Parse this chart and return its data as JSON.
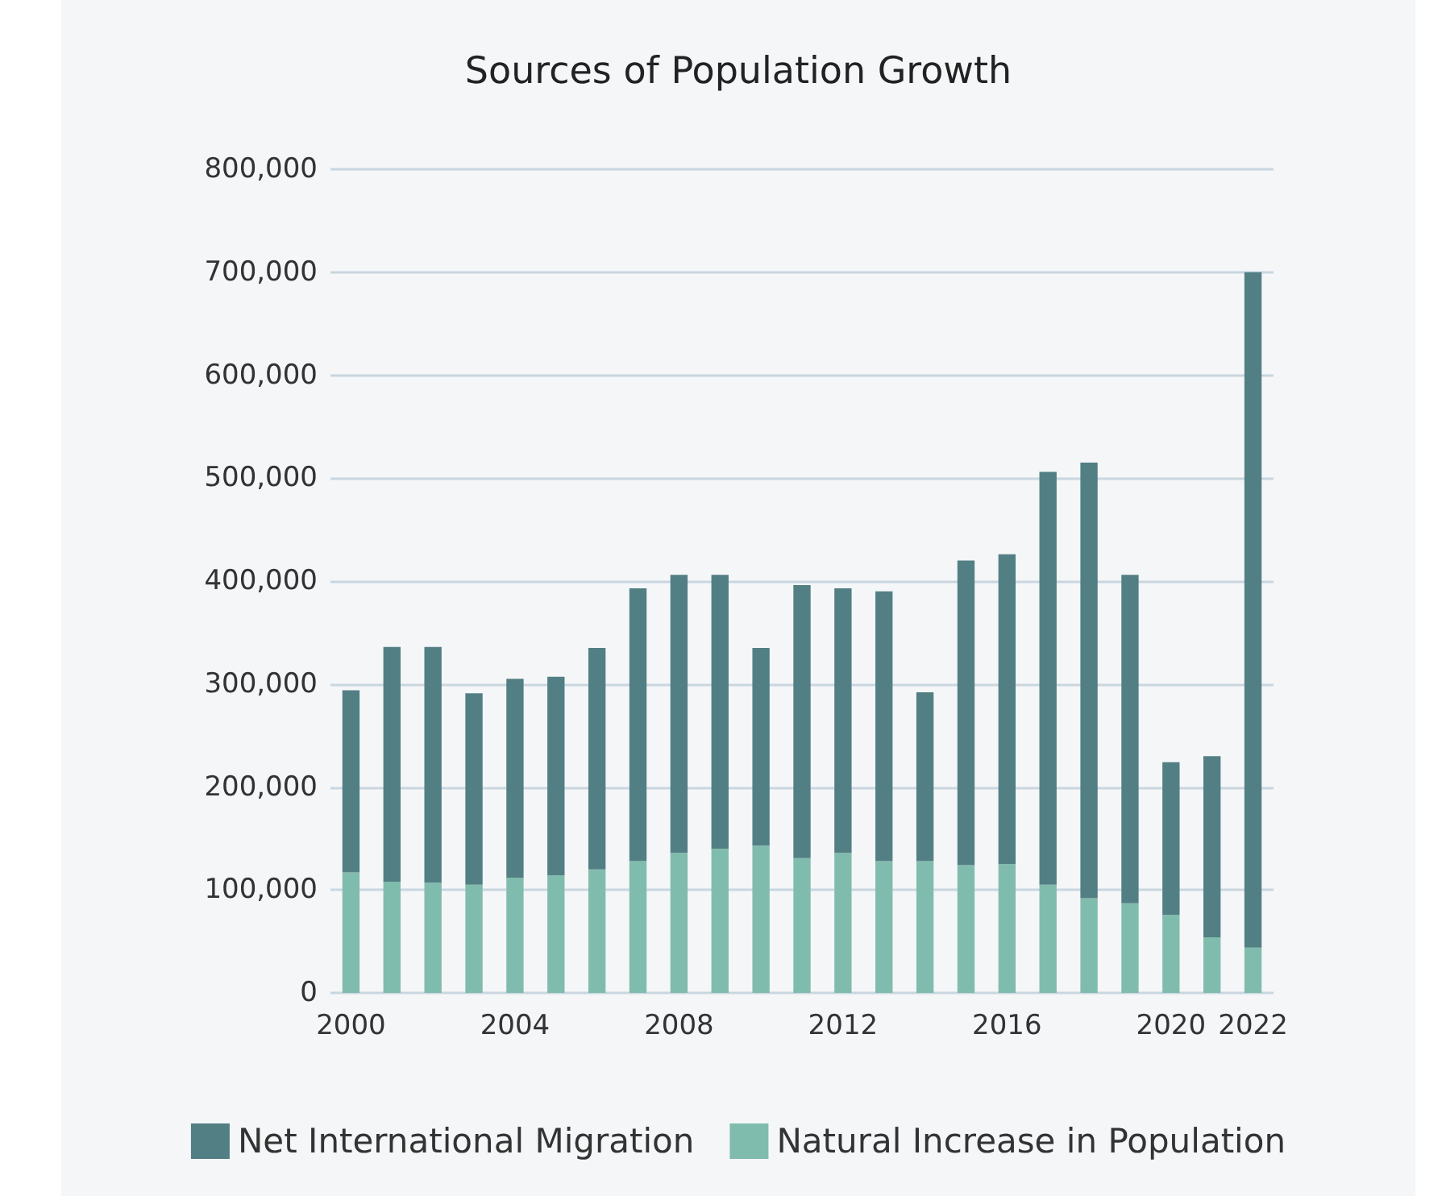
{
  "chart_data": {
    "type": "bar",
    "title": "Sources of Population Growth",
    "categories": [
      "2000",
      null,
      null,
      null,
      "2004",
      null,
      null,
      null,
      "2008",
      null,
      null,
      null,
      "2012",
      null,
      null,
      null,
      "2016",
      null,
      null,
      null,
      "2020",
      null,
      "2022"
    ],
    "series": [
      {
        "name": "Natural Increase in Population",
        "color": "#80bcad",
        "values": [
          117000,
          108000,
          107000,
          105000,
          112000,
          114000,
          120000,
          128000,
          136000,
          140000,
          143000,
          131000,
          136000,
          128000,
          128000,
          124000,
          125000,
          105000,
          92000,
          87000,
          76000,
          54000,
          44000
        ]
      },
      {
        "name": "Net International Migration",
        "color": "#527f83",
        "values": [
          177000,
          228000,
          229000,
          186000,
          193000,
          193000,
          215000,
          265000,
          270000,
          266000,
          192000,
          265000,
          257000,
          262000,
          164000,
          296000,
          301000,
          401000,
          423000,
          319000,
          148000,
          176000,
          656000
        ]
      }
    ],
    "stacked": true,
    "ylim": [
      0,
      800000
    ],
    "yticks": [
      0,
      {
        "value": 100000,
        "label": "100,000"
      },
      {
        "value": 200000,
        "label": "200,000"
      },
      {
        "value": 300000,
        "label": "300,000"
      },
      {
        "value": 400000,
        "label": "400,000"
      },
      {
        "value": 500000,
        "label": "500,000"
      },
      {
        "value": 600000,
        "label": "600,000"
      },
      {
        "value": 700000,
        "label": "700,000"
      },
      {
        "value": 800000,
        "label": "800,000"
      }
    ],
    "grid": "y",
    "legend": "bottom"
  }
}
